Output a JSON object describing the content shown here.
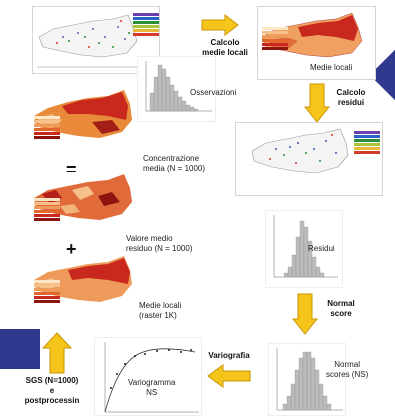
{
  "steps": {
    "calcolo_medie_locali": "Calcolo\nmedie locali",
    "medie_locali": "Medie locali",
    "calcolo_residui": "Calcolo\nresidui",
    "osservazioni": "Osservazioni",
    "concentrazione_media": "Concentrazione\nmedia (N = 1000)",
    "valore_medio_residuo": "Valore medio\nresiduo  (N = 1000)",
    "medie_locali_raster": "Medie locali\n(raster 1K)",
    "residui": "Residui",
    "normal_score_step": "Normal\nscore",
    "normal_scores": "Normal\nscores (NS)",
    "variografia": "Variografia",
    "variogramma": "Variogramma\nNS",
    "sgs": "SGS  (N=1000)\ne\npostprocessin"
  },
  "operators": {
    "equals": "=",
    "plus": "+"
  },
  "colors": {
    "arrow_fill": "#f6c51b",
    "arrow_stroke": "#c89500",
    "navy_accent": "#2f3a8f",
    "map_red": "#c8281e",
    "map_orange": "#e88a3a",
    "map_light": "#f6d7a8"
  }
}
